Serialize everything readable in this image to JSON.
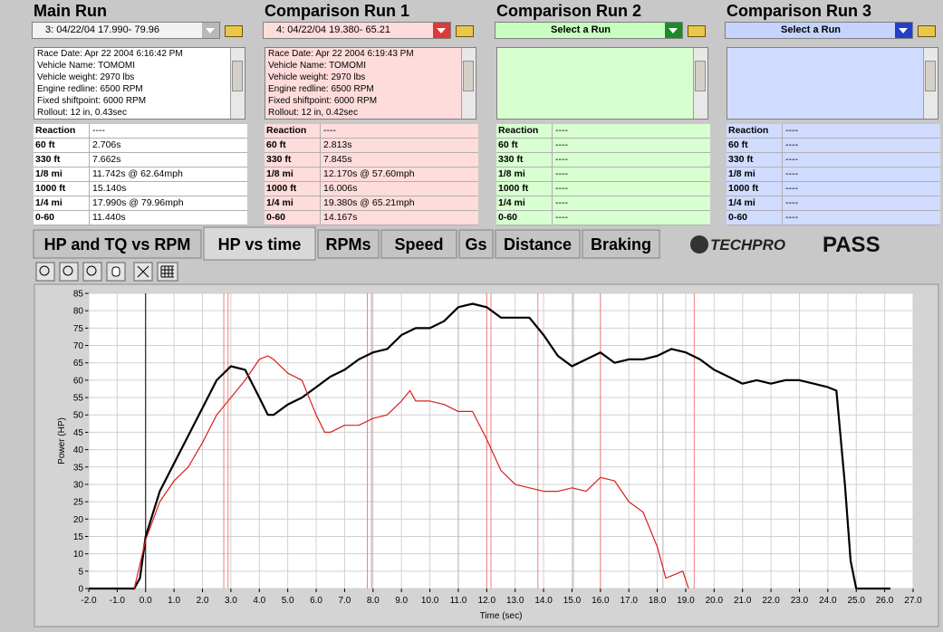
{
  "panels": [
    {
      "title": "Main Run",
      "selector": "3:  04/22/04 17.990- 79.96",
      "info": [
        "Race Date: Apr 22 2004  6:16:42 PM",
        "Vehicle Name: TOMOMI",
        "Vehicle weight: 2970 lbs",
        "Engine redline: 6500 RPM",
        "Fixed shiftpoint: 6000 RPM",
        "Rollout: 12 in, 0.43sec"
      ],
      "stats": [
        [
          "Reaction",
          "----"
        ],
        [
          "60 ft",
          "2.706s"
        ],
        [
          "330 ft",
          "7.662s"
        ],
        [
          "1/8 mi",
          "11.742s @ 62.64mph"
        ],
        [
          "1000 ft",
          "15.140s"
        ],
        [
          "1/4 mi",
          "17.990s @ 79.96mph"
        ],
        [
          "0-60",
          "11.440s"
        ]
      ]
    },
    {
      "title": "Comparison Run 1",
      "selector": "4:  04/22/04 19.380- 65.21",
      "info": [
        "Race Date: Apr 22 2004  6:19:43 PM",
        "Vehicle Name: TOMOMI",
        "Vehicle weight: 2970 lbs",
        "Engine redline: 6500 RPM",
        "Fixed shiftpoint: 6000 RPM",
        "Rollout: 12 in, 0.42sec"
      ],
      "stats": [
        [
          "Reaction",
          "----"
        ],
        [
          "60 ft",
          "2.813s"
        ],
        [
          "330 ft",
          "7.845s"
        ],
        [
          "1/8 mi",
          "12.170s @ 57.60mph"
        ],
        [
          "1000 ft",
          "16.006s"
        ],
        [
          "1/4 mi",
          "19.380s @ 65.21mph"
        ],
        [
          "0-60",
          "14.167s"
        ]
      ]
    },
    {
      "title": "Comparison Run 2",
      "selector": "Select a Run",
      "info": [],
      "stats": [
        [
          "Reaction",
          "----"
        ],
        [
          "60 ft",
          "----"
        ],
        [
          "330 ft",
          "----"
        ],
        [
          "1/8 mi",
          "----"
        ],
        [
          "1000 ft",
          "----"
        ],
        [
          "1/4 mi",
          "----"
        ],
        [
          "0-60",
          "----"
        ]
      ]
    },
    {
      "title": "Comparison Run 3",
      "selector": "Select a Run",
      "info": [],
      "stats": [
        [
          "Reaction",
          "----"
        ],
        [
          "60 ft",
          "----"
        ],
        [
          "330 ft",
          "----"
        ],
        [
          "1/8 mi",
          "----"
        ],
        [
          "1000 ft",
          "----"
        ],
        [
          "1/4 mi",
          "----"
        ],
        [
          "0-60",
          "----"
        ]
      ]
    }
  ],
  "tabs": [
    "HP and TQ vs RPM",
    "HP vs time",
    "RPMs",
    "Speed",
    "Gs",
    "Distance",
    "Braking"
  ],
  "selected_tab": 1,
  "logo": {
    "brand": "TECHPRO",
    "product": "PASS"
  },
  "chart_data": {
    "type": "line",
    "x_label": "Time (sec)",
    "y_label": "Power (HP)",
    "xlim": [
      -2,
      27
    ],
    "ylim": [
      0,
      85
    ],
    "xticks": [
      {
        "value": -2,
        "label": "-2.0"
      },
      {
        "value": -1,
        "label": "-1.0"
      },
      {
        "value": 0,
        "label": "0.0"
      },
      {
        "value": 1,
        "label": "1.0"
      },
      {
        "value": 2,
        "label": "2.0"
      },
      {
        "value": 3,
        "label": "3.0"
      },
      {
        "value": 4,
        "label": "4.0"
      },
      {
        "value": 5,
        "label": "5.0"
      },
      {
        "value": 6,
        "label": "6.0"
      },
      {
        "value": 7,
        "label": "7.0"
      },
      {
        "value": 8,
        "label": "8.0"
      },
      {
        "value": 9,
        "label": "9.0"
      },
      {
        "value": 10,
        "label": "10.0"
      },
      {
        "value": 11,
        "label": "11.0"
      },
      {
        "value": 12,
        "label": "12.0"
      },
      {
        "value": 13,
        "label": "13.0"
      },
      {
        "value": 14,
        "label": "14.0"
      },
      {
        "value": 15,
        "label": "15.0"
      },
      {
        "value": 16,
        "label": "16.0"
      },
      {
        "value": 17,
        "label": "17.0"
      },
      {
        "value": 18,
        "label": "18.0"
      },
      {
        "value": 19,
        "label": "19.0"
      },
      {
        "value": 20,
        "label": "20.0"
      },
      {
        "value": 21,
        "label": "21.0"
      },
      {
        "value": 22,
        "label": "22.0"
      },
      {
        "value": 23,
        "label": "23.0"
      },
      {
        "value": 24,
        "label": "24.0"
      },
      {
        "value": 25,
        "label": "25.0"
      },
      {
        "value": 26,
        "label": "26.0"
      },
      {
        "value": 27,
        "label": "27.0"
      }
    ],
    "yticks": [
      0,
      5,
      10,
      15,
      20,
      25,
      30,
      35,
      40,
      45,
      50,
      55,
      60,
      65,
      70,
      75,
      80,
      85
    ],
    "grid": true,
    "markers": [
      {
        "color": "#f08080",
        "x": [
          2.75,
          2.9,
          7.8,
          7.95,
          12.0,
          12.15,
          13.8,
          16.0,
          19.3
        ]
      },
      {
        "color": "#b4b4b4",
        "x": [
          11.0,
          15.05,
          18.2
        ]
      }
    ],
    "series": [
      {
        "color": "#000000",
        "x": [
          -2,
          -0.4,
          -0.2,
          0,
          0.5,
          1,
          1.5,
          2,
          2.5,
          3,
          3.5,
          4,
          4.3,
          4.5,
          5,
          5.5,
          6,
          6.5,
          7,
          7.5,
          8,
          8.5,
          9,
          9.5,
          10,
          10.5,
          11,
          11.5,
          12,
          12.5,
          13,
          13.5,
          14,
          14.5,
          15,
          15.5,
          16,
          16.5,
          17,
          17.5,
          18,
          18.5,
          19,
          19.5,
          20,
          20.5,
          21,
          21.5,
          22,
          22.5,
          23,
          23.5,
          24,
          24.3,
          24.6,
          24.8,
          25,
          26.2
        ],
        "values": [
          0,
          0,
          3,
          15,
          28,
          36,
          44,
          52,
          60,
          64,
          63,
          55,
          50,
          50,
          53,
          55,
          58,
          61,
          63,
          66,
          68,
          69,
          73,
          75,
          75,
          77,
          81,
          82,
          81,
          78,
          78,
          78,
          73,
          67,
          64,
          66,
          68,
          65,
          66,
          66,
          67,
          69,
          68,
          66,
          63,
          61,
          59,
          60,
          59,
          60,
          60,
          59,
          58,
          57,
          30,
          8,
          0,
          0
        ]
      },
      {
        "color": "#d82020",
        "x": [
          -0.4,
          0,
          0.5,
          1,
          1.5,
          2,
          2.5,
          3,
          3.5,
          4,
          4.3,
          4.5,
          5,
          5.5,
          6,
          6.3,
          6.5,
          7,
          7.5,
          8,
          8.5,
          9,
          9.3,
          9.5,
          10,
          10.5,
          11,
          11.5,
          12,
          12.5,
          13,
          13.5,
          14,
          14.5,
          15,
          15.5,
          16,
          16.5,
          17,
          17.5,
          18,
          18.3,
          18.6,
          18.9,
          19.1
        ],
        "values": [
          0,
          14,
          25,
          31,
          35,
          42,
          50,
          55,
          60,
          66,
          67,
          66,
          62,
          60,
          50,
          45,
          45,
          47,
          47,
          49,
          50,
          54,
          57,
          54,
          54,
          53,
          51,
          51,
          43,
          34,
          30,
          29,
          28,
          28,
          29,
          28,
          32,
          31,
          25,
          22,
          12,
          3,
          4,
          5,
          0
        ]
      }
    ]
  }
}
